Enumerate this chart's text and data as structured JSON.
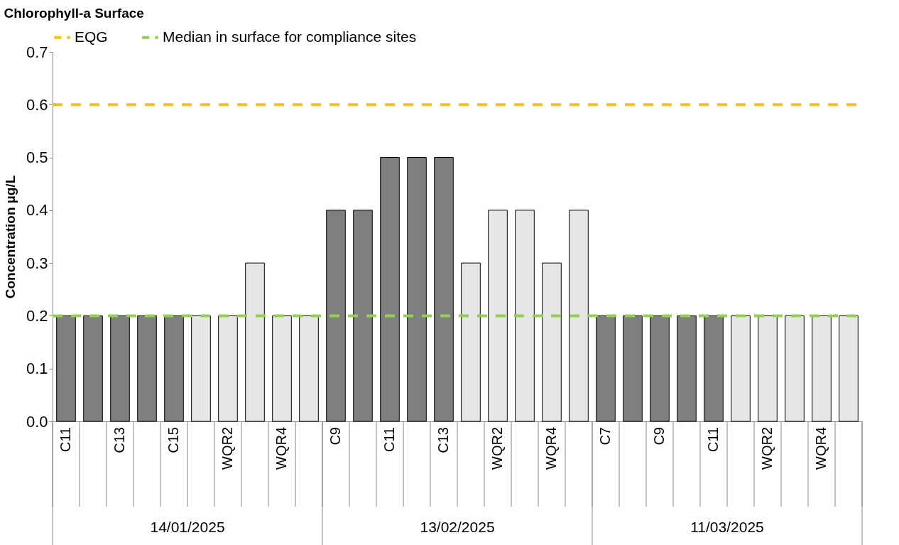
{
  "chart_data": {
    "type": "bar",
    "title": "Chlorophyll-a Surface",
    "ylabel": "Concentration µg/L",
    "categories": [
      "C11",
      null,
      "C13",
      null,
      "C15",
      null,
      "WQR2",
      null,
      "WQR4",
      null,
      "C9",
      null,
      "C11",
      null,
      "C13",
      null,
      "WQR2",
      null,
      "WQR4",
      null,
      "C7",
      null,
      "C9",
      null,
      "C11",
      null,
      "WQR2",
      null,
      "WQR4",
      null
    ],
    "values": [
      0.2,
      0.2,
      0.2,
      0.2,
      0.2,
      0.2,
      0.2,
      0.3,
      0.2,
      0.2,
      0.4,
      0.4,
      0.5,
      0.5,
      0.5,
      0.3,
      0.4,
      0.4,
      0.3,
      0.4,
      0.2,
      0.2,
      0.2,
      0.2,
      0.2,
      0.2,
      0.2,
      0.2,
      0.2,
      0.2
    ],
    "colors": [
      "#7f7f7f",
      "#7f7f7f",
      "#7f7f7f",
      "#7f7f7f",
      "#7f7f7f",
      "#e7e6e6",
      "#e7e6e6",
      "#e7e6e6",
      "#e7e6e6",
      "#e7e6e6",
      "#7f7f7f",
      "#7f7f7f",
      "#7f7f7f",
      "#7f7f7f",
      "#7f7f7f",
      "#e7e6e6",
      "#e7e6e6",
      "#e7e6e6",
      "#e7e6e6",
      "#e7e6e6",
      "#7f7f7f",
      "#7f7f7f",
      "#7f7f7f",
      "#7f7f7f",
      "#7f7f7f",
      "#e7e6e6",
      "#e7e6e6",
      "#e7e6e6",
      "#e7e6e6",
      "#e7e6e6"
    ],
    "ylim": [
      0,
      0.7
    ],
    "yticks": [
      {
        "value": 0,
        "label": "0.0"
      },
      {
        "value": 0.1,
        "label": "0.1"
      },
      {
        "value": 0.2,
        "label": "0.2"
      },
      {
        "value": 0.3,
        "label": "0.3"
      },
      {
        "value": 0.4,
        "label": "0.4"
      },
      {
        "value": 0.5,
        "label": "0.5"
      },
      {
        "value": 0.6,
        "label": "0.6"
      },
      {
        "value": 0.7,
        "label": "0.7"
      }
    ],
    "ref_lines": [
      {
        "axis": "y",
        "value": 0.6,
        "label": "EQG",
        "color": "#ffc000",
        "line_style": "dashed"
      },
      {
        "axis": "y",
        "value": 0.2,
        "label": "Median in surface for compliance sites",
        "color": "#92d050",
        "line_style": "dashed"
      }
    ],
    "annotations": [
      "14/01/2025",
      "13/02/2025",
      "11/03/2025"
    ],
    "legend": "top",
    "grid": false
  }
}
